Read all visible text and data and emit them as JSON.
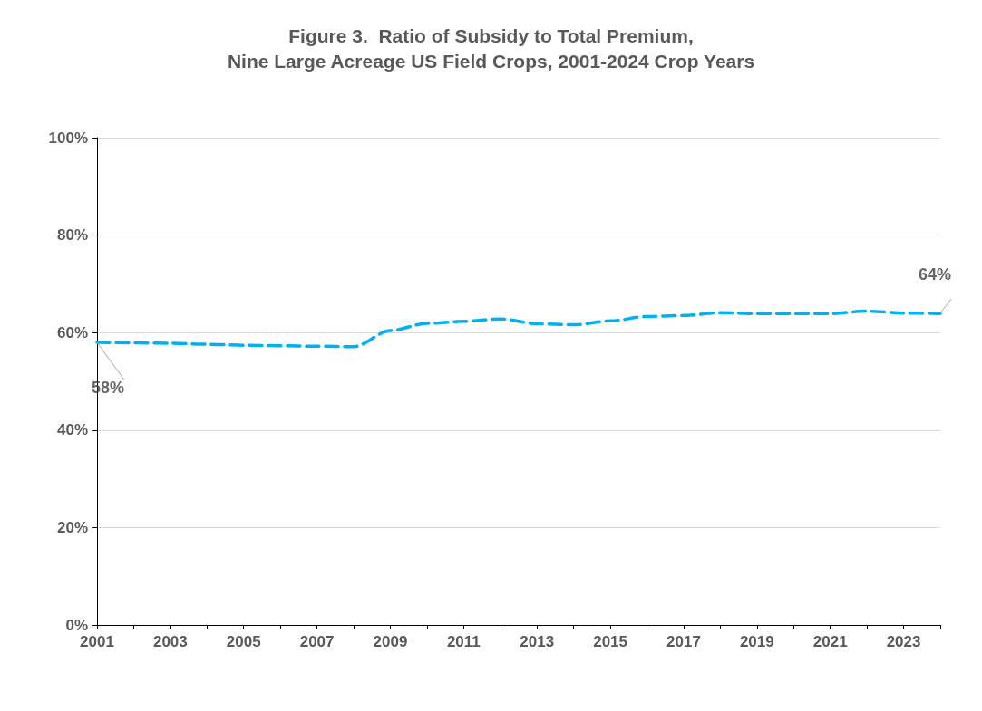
{
  "chart_data": {
    "type": "line",
    "title": "Figure 3.  Ratio of Subsidy to Total Premium,\nNine Large Acreage US Field Crops, 2001-2024 Crop Years",
    "x": [
      2001,
      2002,
      2003,
      2004,
      2005,
      2006,
      2007,
      2008,
      2009,
      2010,
      2011,
      2012,
      2013,
      2014,
      2015,
      2016,
      2017,
      2018,
      2019,
      2020,
      2021,
      2022,
      2023,
      2024
    ],
    "series": [
      {
        "color": "#00b0f0",
        "values": [
          58,
          57.9,
          57.8,
          57.6,
          57.4,
          57.3,
          57.2,
          57.1,
          60.4,
          61.9,
          62.3,
          62.8,
          61.8,
          61.6,
          62.4,
          63.3,
          63.5,
          64.1,
          63.9,
          63.9,
          63.9,
          64.4,
          64,
          63.9
        ]
      }
    ],
    "xlim": [
      2001,
      2024
    ],
    "xticks": [
      2001,
      2003,
      2005,
      2007,
      2009,
      2011,
      2013,
      2015,
      2017,
      2019,
      2021,
      2023
    ],
    "ylim": [
      0,
      100
    ],
    "yticks": [
      {
        "value": 0,
        "label": "0%"
      },
      {
        "value": 20,
        "label": "20%"
      },
      {
        "value": 40,
        "label": "40%"
      },
      {
        "value": 60,
        "label": "60%"
      },
      {
        "value": 80,
        "label": "80%"
      },
      {
        "value": 100,
        "label": "100%"
      }
    ],
    "annotations": [
      {
        "text": "58%",
        "x": 2001,
        "y": 58
      },
      {
        "text": "64%",
        "x": 2024,
        "y": 64
      }
    ],
    "grid": "y",
    "marker": "none",
    "line_style": "dashed"
  }
}
